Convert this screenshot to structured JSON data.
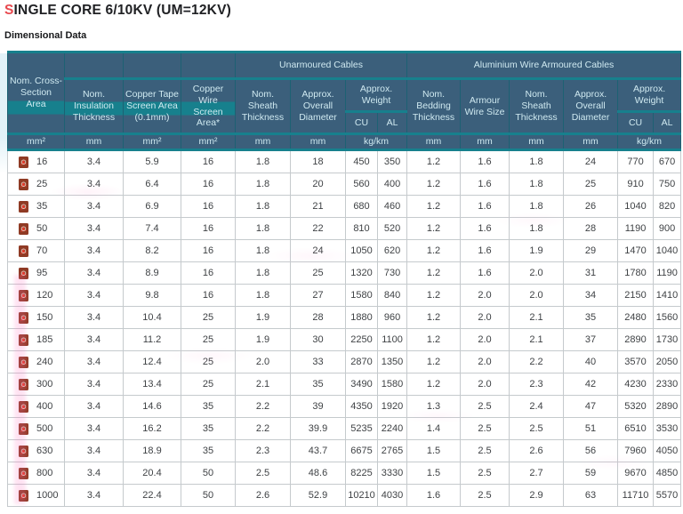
{
  "header": {
    "title_accent": "S",
    "title_rest": "INGLE CORE 6/10KV (UM=12KV)",
    "subtitle": "Dimensional Data"
  },
  "colors": {
    "title_accent_red": "#e8484e",
    "header_cell_bg": "#3b5f7b",
    "header_accent_teal": "#17808d",
    "header_text": "#cfe9f0",
    "body_border_gray": "#c5cacd",
    "body_text": "#3f4245",
    "watermark_pink": "#ff6ebe",
    "gutter_blue": "#e2f2f8",
    "pdf_icon_red": "#e03a2a"
  },
  "icons": {
    "row_link": "pdf-icon"
  },
  "table": {
    "columns": {
      "cross_section": "Nom. Cross-Section Area",
      "insulation": "Nom. Insulation Thickness",
      "copper_tape": "Copper Tape Screen Area (0.1mm)",
      "copper_wire": "Copper Wire Screen Area*",
      "sheath": "Nom. Sheath Thickness",
      "overall_diameter": "Approx. Overall Diameter",
      "weight": "Approx. Weight",
      "cu": "CU",
      "al": "AL",
      "bedding": "Nom. Bedding Thickness",
      "armour_wire": "Armour Wire Size"
    },
    "groups": {
      "unarmoured": "Unarmoured Cables",
      "armoured": "Aluminium Wire Armoured Cables"
    },
    "units_row": [
      "mm²",
      "mm",
      "mm²",
      "mm²",
      "mm",
      "mm",
      "kg/km",
      "mm",
      "mm",
      "mm",
      "mm",
      "kg/km"
    ],
    "rows": [
      {
        "size": "16",
        "values": [
          "3.4",
          "5.9",
          "16",
          "1.8",
          "18",
          "450",
          "350",
          "1.2",
          "1.6",
          "1.8",
          "24",
          "770",
          "670"
        ]
      },
      {
        "size": "25",
        "values": [
          "3.4",
          "6.4",
          "16",
          "1.8",
          "20",
          "560",
          "400",
          "1.2",
          "1.6",
          "1.8",
          "25",
          "910",
          "750"
        ]
      },
      {
        "size": "35",
        "values": [
          "3.4",
          "6.9",
          "16",
          "1.8",
          "21",
          "680",
          "460",
          "1.2",
          "1.6",
          "1.8",
          "26",
          "1040",
          "820"
        ]
      },
      {
        "size": "50",
        "values": [
          "3.4",
          "7.4",
          "16",
          "1.8",
          "22",
          "810",
          "520",
          "1.2",
          "1.6",
          "1.8",
          "28",
          "1190",
          "900"
        ]
      },
      {
        "size": "70",
        "values": [
          "3.4",
          "8.2",
          "16",
          "1.8",
          "24",
          "1050",
          "620",
          "1.2",
          "1.6",
          "1.9",
          "29",
          "1470",
          "1040"
        ]
      },
      {
        "size": "95",
        "values": [
          "3.4",
          "8.9",
          "16",
          "1.8",
          "25",
          "1320",
          "730",
          "1.2",
          "1.6",
          "2.0",
          "31",
          "1780",
          "1190"
        ]
      },
      {
        "size": "120",
        "values": [
          "3.4",
          "9.8",
          "16",
          "1.8",
          "27",
          "1580",
          "840",
          "1.2",
          "2.0",
          "2.0",
          "34",
          "2150",
          "1410"
        ]
      },
      {
        "size": "150",
        "values": [
          "3.4",
          "10.4",
          "25",
          "1.9",
          "28",
          "1880",
          "960",
          "1.2",
          "2.0",
          "2.1",
          "35",
          "2480",
          "1560"
        ]
      },
      {
        "size": "185",
        "values": [
          "3.4",
          "11.2",
          "25",
          "1.9",
          "30",
          "2250",
          "1100",
          "1.2",
          "2.0",
          "2.1",
          "37",
          "2890",
          "1730"
        ]
      },
      {
        "size": "240",
        "values": [
          "3.4",
          "12.4",
          "25",
          "2.0",
          "33",
          "2870",
          "1350",
          "1.2",
          "2.0",
          "2.2",
          "40",
          "3570",
          "2050"
        ]
      },
      {
        "size": "300",
        "values": [
          "3.4",
          "13.4",
          "25",
          "2.1",
          "35",
          "3490",
          "1580",
          "1.2",
          "2.0",
          "2.3",
          "42",
          "4230",
          "2330"
        ]
      },
      {
        "size": "400",
        "values": [
          "3.4",
          "14.6",
          "35",
          "2.2",
          "39",
          "4350",
          "1920",
          "1.3",
          "2.5",
          "2.4",
          "47",
          "5320",
          "2890"
        ]
      },
      {
        "size": "500",
        "values": [
          "3.4",
          "16.2",
          "35",
          "2.2",
          "39.9",
          "5235",
          "2240",
          "1.4",
          "2.5",
          "2.5",
          "51",
          "6510",
          "3530"
        ]
      },
      {
        "size": "630",
        "values": [
          "3.4",
          "18.9",
          "35",
          "2.3",
          "43.7",
          "6675",
          "2765",
          "1.5",
          "2.5",
          "2.6",
          "56",
          "7960",
          "4050"
        ]
      },
      {
        "size": "800",
        "values": [
          "3.4",
          "20.4",
          "50",
          "2.5",
          "48.6",
          "8225",
          "3330",
          "1.5",
          "2.5",
          "2.7",
          "59",
          "9670",
          "4850"
        ]
      },
      {
        "size": "1000",
        "values": [
          "3.4",
          "22.4",
          "50",
          "2.6",
          "52.9",
          "10210",
          "4030",
          "1.6",
          "2.5",
          "2.9",
          "63",
          "11710",
          "5570"
        ]
      }
    ]
  }
}
